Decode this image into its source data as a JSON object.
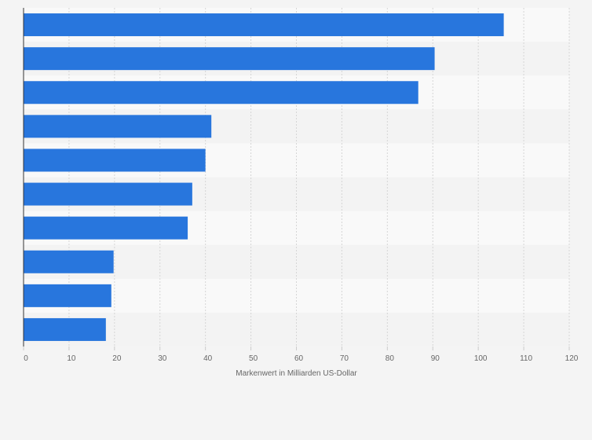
{
  "chart_data": {
    "type": "bar",
    "orientation": "horizontal",
    "title": "",
    "xlabel": "Markenwert in Milliarden US-Dollar",
    "ylabel": "",
    "xlim": [
      0,
      120
    ],
    "ticks": [
      0,
      10,
      20,
      30,
      40,
      50,
      60,
      70,
      80,
      90,
      100,
      110,
      120
    ],
    "categories": [
      "",
      "",
      "",
      "",
      "",
      "",
      "",
      "",
      "",
      ""
    ],
    "values": [
      105.6,
      90.4,
      86.8,
      41.3,
      40.0,
      37.1,
      36.1,
      19.8,
      19.3,
      18.1
    ],
    "bar_color": "#2876dd",
    "grid": true
  }
}
